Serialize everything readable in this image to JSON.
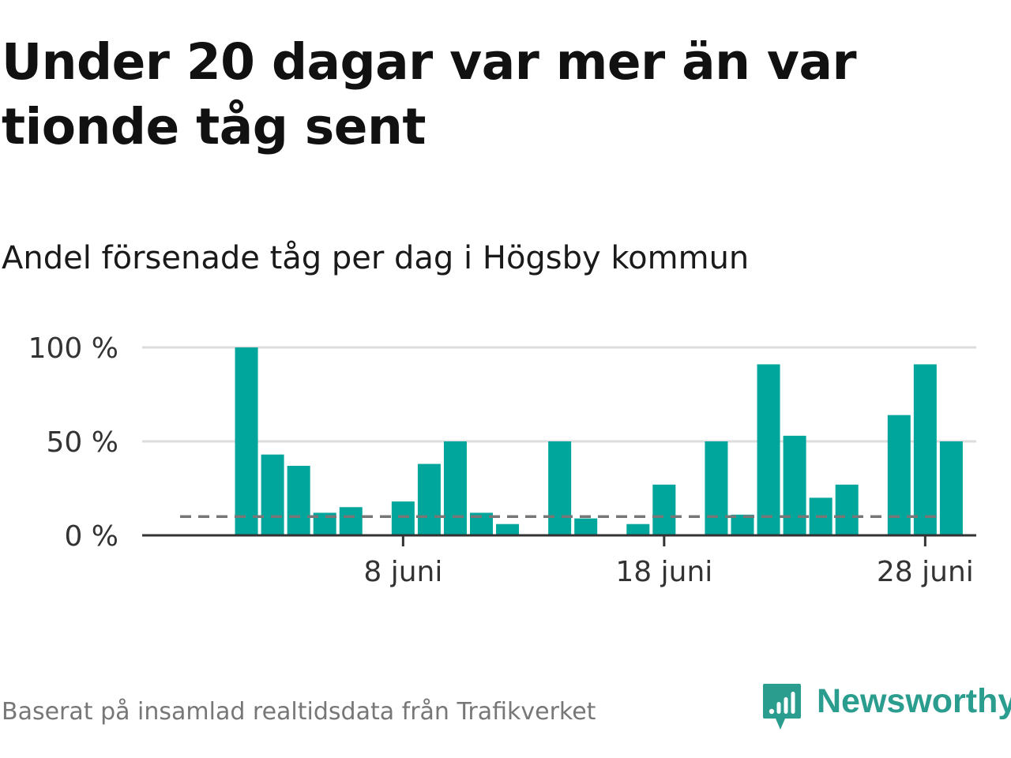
{
  "header": {
    "title": "Under 20 dagar var mer än var tionde tåg sent",
    "subtitle": "Andel försenade tåg per dag i Högsby kommun"
  },
  "footer": {
    "source": "Baserat på insamlad realtidsdata från Trafikverket",
    "brand": "Newsworthy"
  },
  "colors": {
    "bar": "#00a59b",
    "reference_line": "#777777",
    "gridline": "#dddddd",
    "axis": "#333333",
    "brand": "#2a9d8f"
  },
  "chart_data": {
    "type": "bar",
    "x_unit": "date",
    "categories": [
      "2024-06-01",
      "2024-06-02",
      "2024-06-03",
      "2024-06-04",
      "2024-06-05",
      "2024-06-06",
      "2024-06-07",
      "2024-06-08",
      "2024-06-09",
      "2024-06-10",
      "2024-06-11",
      "2024-06-12",
      "2024-06-13",
      "2024-06-14",
      "2024-06-15",
      "2024-06-16",
      "2024-06-17",
      "2024-06-18",
      "2024-06-19",
      "2024-06-20",
      "2024-06-21",
      "2024-06-22",
      "2024-06-23",
      "2024-06-24",
      "2024-06-25",
      "2024-06-26",
      "2024-06-27",
      "2024-06-28",
      "2024-06-29",
      "2024-06-30"
    ],
    "values": [
      0,
      100,
      43,
      37,
      12,
      15,
      0,
      18,
      38,
      50,
      12,
      6,
      0,
      50,
      9,
      0,
      6,
      27,
      0,
      50,
      11,
      91,
      53,
      20,
      27,
      0,
      64,
      91,
      50,
      0
    ],
    "reference_line": 10,
    "ylim": [
      0,
      100
    ],
    "y_ticks": [
      0,
      50,
      100
    ],
    "y_tick_labels": [
      "0 %",
      "50 %",
      "100 %"
    ],
    "x_ticks": [
      "2024-06-08",
      "2024-06-18",
      "2024-06-28"
    ],
    "x_tick_labels": [
      "8 juni",
      "18 juni",
      "28 juni"
    ],
    "xlabel": "",
    "ylabel": "",
    "grid": true
  }
}
